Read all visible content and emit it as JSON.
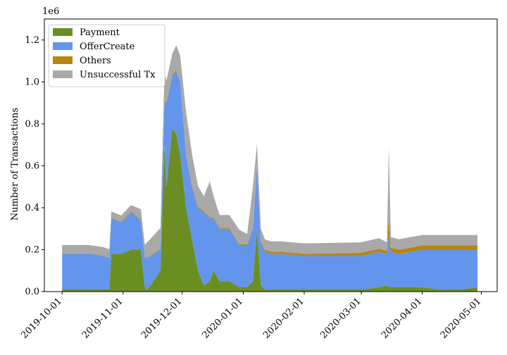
{
  "chart_data": {
    "type": "area",
    "stacked": true,
    "xlabel": "",
    "ylabel": "Number of Transactions",
    "y_multiplier_label": "1e6",
    "y_scale": 1000000,
    "ylim": [
      0,
      1.3
    ],
    "yticks": [
      0.0,
      0.2,
      0.4,
      0.6,
      0.8,
      1.0,
      1.2
    ],
    "ytick_labels": [
      "0.0",
      "0.2",
      "0.4",
      "0.6",
      "0.8",
      "1.0",
      "1.2"
    ],
    "xlim": [
      "2019-10-01",
      "2020-04-30"
    ],
    "xticks": [
      "2019-10-01",
      "2019-11-01",
      "2019-12-01",
      "2020-01-01",
      "2020-02-01",
      "2020-03-01",
      "2020-04-01",
      "2020-05-01"
    ],
    "grid": false,
    "legend_position": "top-left",
    "x": [
      "2019-10-01",
      "2019-10-08",
      "2019-10-15",
      "2019-10-22",
      "2019-10-25",
      "2019-10-26",
      "2019-10-31",
      "2019-11-05",
      "2019-11-10",
      "2019-11-12",
      "2019-11-13",
      "2019-11-15",
      "2019-11-20",
      "2019-11-22",
      "2019-11-23",
      "2019-11-26",
      "2019-11-28",
      "2019-11-30",
      "2019-12-03",
      "2019-12-06",
      "2019-12-09",
      "2019-12-12",
      "2019-12-15",
      "2019-12-17",
      "2019-12-20",
      "2019-12-25",
      "2019-12-30",
      "2020-01-03",
      "2020-01-06",
      "2020-01-08",
      "2020-01-10",
      "2020-01-12",
      "2020-01-15",
      "2020-01-20",
      "2020-02-01",
      "2020-02-15",
      "2020-03-01",
      "2020-03-10",
      "2020-03-14",
      "2020-03-15",
      "2020-03-16",
      "2020-03-20",
      "2020-04-01",
      "2020-04-10",
      "2020-04-20",
      "2020-04-29"
    ],
    "series": [
      {
        "name": "Payment",
        "color": "#6b8e23",
        "values": [
          0.01,
          0.01,
          0.01,
          0.01,
          0.01,
          0.18,
          0.18,
          0.2,
          0.2,
          0.02,
          0.01,
          0.03,
          0.1,
          0.7,
          0.5,
          0.78,
          0.75,
          0.65,
          0.4,
          0.25,
          0.1,
          0.03,
          0.05,
          0.1,
          0.05,
          0.05,
          0.02,
          0.02,
          0.05,
          0.3,
          0.03,
          0.01,
          0.01,
          0.01,
          0.01,
          0.01,
          0.01,
          0.02,
          0.03,
          0.02,
          0.02,
          0.02,
          0.02,
          0.01,
          0.01,
          0.02
        ]
      },
      {
        "name": "OfferCreate",
        "color": "#6495ed",
        "values": [
          0.17,
          0.17,
          0.17,
          0.16,
          0.15,
          0.17,
          0.15,
          0.18,
          0.14,
          0.14,
          0.15,
          0.14,
          0.1,
          0.2,
          0.4,
          0.25,
          0.3,
          0.35,
          0.25,
          0.25,
          0.3,
          0.35,
          0.3,
          0.25,
          0.25,
          0.25,
          0.2,
          0.2,
          0.25,
          0.3,
          0.2,
          0.18,
          0.17,
          0.17,
          0.16,
          0.16,
          0.16,
          0.17,
          0.15,
          0.25,
          0.17,
          0.16,
          0.18,
          0.19,
          0.19,
          0.18
        ]
      },
      {
        "name": "Others",
        "color": "#b8860b",
        "values": [
          0.002,
          0.002,
          0.002,
          0.002,
          0.002,
          0.003,
          0.003,
          0.003,
          0.003,
          0.003,
          0.003,
          0.003,
          0.004,
          0.005,
          0.005,
          0.005,
          0.005,
          0.005,
          0.005,
          0.005,
          0.005,
          0.005,
          0.005,
          0.005,
          0.005,
          0.005,
          0.005,
          0.005,
          0.005,
          0.005,
          0.01,
          0.01,
          0.01,
          0.01,
          0.01,
          0.012,
          0.015,
          0.015,
          0.015,
          0.08,
          0.02,
          0.02,
          0.02,
          0.02,
          0.02,
          0.02
        ]
      },
      {
        "name": "Unsuccessful Tx",
        "color": "#a9a9a9",
        "values": [
          0.04,
          0.04,
          0.04,
          0.04,
          0.04,
          0.03,
          0.03,
          0.03,
          0.05,
          0.06,
          0.07,
          0.08,
          0.1,
          0.14,
          0.1,
          0.1,
          0.12,
          0.12,
          0.2,
          0.15,
          0.1,
          0.07,
          0.17,
          0.1,
          0.06,
          0.06,
          0.07,
          0.05,
          0.2,
          0.1,
          0.06,
          0.05,
          0.05,
          0.05,
          0.05,
          0.05,
          0.05,
          0.05,
          0.04,
          0.34,
          0.05,
          0.05,
          0.05,
          0.05,
          0.05,
          0.05
        ]
      }
    ]
  }
}
